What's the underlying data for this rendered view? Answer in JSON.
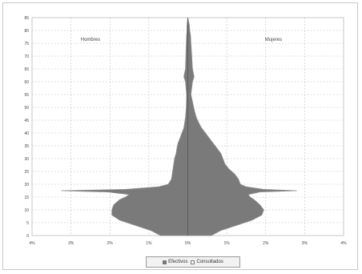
{
  "colors": {
    "effectivos": "#7a7a7a",
    "consultados": "#ffffff",
    "outline": "#8c8c8c",
    "grid": "#c4c4c4",
    "axis_line": "#555555",
    "text": "#444444"
  },
  "chart_data": {
    "type": "area",
    "title": "",
    "xlabel": "",
    "ylabel": "",
    "annotations": [
      {
        "text": "Hombres",
        "side": "left"
      },
      {
        "text": "Mujeres",
        "side": "right"
      }
    ],
    "xlim": [
      -4,
      4
    ],
    "ylim": [
      0,
      85
    ],
    "x_ticks": [
      -4,
      -3,
      -2,
      -1,
      0,
      1,
      2,
      3,
      4
    ],
    "x_tick_labels": [
      "4%",
      "3%",
      "2%",
      "1%",
      "0%",
      "1%",
      "2%",
      "3%",
      "4%"
    ],
    "y_ticks": [
      0,
      5,
      10,
      15,
      20,
      25,
      30,
      35,
      40,
      45,
      50,
      55,
      60,
      65,
      70,
      75,
      80,
      85
    ],
    "grid": true,
    "legend_position": "bottom",
    "legend": [
      "Efectivos",
      "Consultados"
    ],
    "series": [
      {
        "name": "Efectivos",
        "side": "hombres",
        "ages": [
          0,
          2,
          4,
          6,
          8,
          10,
          12,
          14,
          15,
          16,
          17,
          17.5,
          18,
          19,
          20,
          22,
          24,
          26,
          28,
          30,
          32,
          34,
          36,
          38,
          40,
          42,
          44,
          46,
          48,
          50,
          55,
          60,
          62,
          65,
          70,
          75,
          78,
          80,
          82,
          85
        ],
        "values": [
          0.7,
          0.95,
          1.35,
          1.75,
          1.95,
          1.95,
          1.9,
          1.75,
          1.6,
          1.5,
          2.05,
          3.25,
          1.6,
          0.75,
          0.5,
          0.42,
          0.4,
          0.38,
          0.36,
          0.34,
          0.3,
          0.28,
          0.25,
          0.2,
          0.15,
          0.1,
          0.08,
          0.06,
          0.05,
          0.04,
          0.03,
          0.06,
          0.1,
          0.06,
          0.05,
          0.04,
          0.03,
          0.02,
          0.02,
          0.0
        ]
      },
      {
        "name": "Efectivos",
        "side": "mujeres",
        "ages": [
          0,
          2,
          4,
          6,
          8,
          10,
          12,
          14,
          15,
          16,
          17,
          17.5,
          18,
          19,
          20,
          22,
          24,
          26,
          28,
          30,
          32,
          34,
          36,
          38,
          40,
          42,
          44,
          46,
          48,
          50,
          55,
          60,
          62,
          65,
          70,
          75,
          78,
          80,
          82,
          85
        ],
        "values": [
          0.6,
          0.85,
          1.25,
          1.65,
          1.9,
          1.95,
          1.85,
          1.7,
          1.6,
          1.55,
          1.85,
          2.8,
          1.95,
          1.5,
          1.35,
          1.3,
          1.2,
          1.05,
          0.95,
          0.9,
          0.85,
          0.75,
          0.65,
          0.55,
          0.45,
          0.35,
          0.28,
          0.22,
          0.18,
          0.15,
          0.08,
          0.12,
          0.16,
          0.12,
          0.1,
          0.08,
          0.07,
          0.05,
          0.04,
          0.0
        ]
      }
    ]
  }
}
